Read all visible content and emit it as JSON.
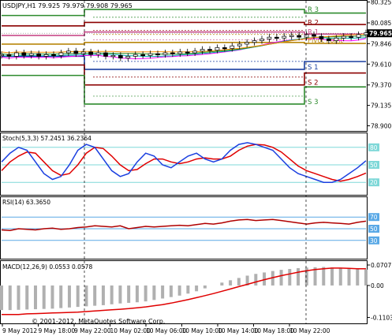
{
  "window": {
    "title": "USDJPY,H1 79.925 79.979 79.908 79.965",
    "copyright": "© 2001-2012, MetaQuotes Software Corp."
  },
  "chart_data": {
    "type": "line",
    "symbol": "USDJPY,H1",
    "x_ticks": [
      "9 May 2012",
      "9 May 18:00",
      "9 May 22:00",
      "10 May 02:00",
      "10 May 06:00",
      "10 May 10:00",
      "10 May 14:00",
      "10 May 18:00",
      "10 May 22:00"
    ],
    "price_panel": {
      "ylim": [
        78.85,
        80.33
      ],
      "ticks": [
        "80.325",
        "80.085",
        "79.846",
        "79.610",
        "79.370",
        "79.135",
        "78.900"
      ],
      "current_price": "79.965",
      "ohlc": {
        "open": 79.925,
        "high": 79.979,
        "low": 79.908,
        "close": 79.965
      },
      "pivot_levels": [
        {
          "name": "R 3",
          "label": "R 3",
          "day1": 80.17,
          "day2": 80.24,
          "color": "#2e8b2e"
        },
        {
          "name": "R 2",
          "label": "R 2",
          "day1": 80.05,
          "day2": 80.09,
          "color": "#8b0000"
        },
        {
          "name": "R 1",
          "label": "R 1",
          "day1": 79.94,
          "day2": 79.98,
          "color": "#c84b8a"
        },
        {
          "name": "Pivot Point",
          "label": "Pivot Point",
          "day1": 79.84,
          "day2": 79.86,
          "color": "#b8860b"
        },
        {
          "name": "S 1",
          "label": "S 1",
          "day1": 79.7,
          "day2": 79.55,
          "color": "#1a3fa0"
        },
        {
          "name": "S 2",
          "label": "S 2",
          "day1": 79.6,
          "day2": 79.37,
          "color": "#8b0000"
        },
        {
          "name": "S 3",
          "label": "S 3",
          "day1": 79.48,
          "day2": 79.15,
          "color": "#2e8b2e"
        }
      ],
      "candles": [
        79.72,
        79.7,
        79.74,
        79.71,
        79.73,
        79.7,
        79.72,
        79.71,
        79.74,
        79.76,
        79.73,
        79.75,
        79.72,
        79.74,
        79.7,
        79.71,
        79.68,
        79.7,
        79.72,
        79.71,
        79.73,
        79.72,
        79.74,
        79.73,
        79.75,
        79.74,
        79.76,
        79.78,
        79.77,
        79.8,
        79.79,
        79.82,
        79.84,
        79.86,
        79.88,
        79.9,
        79.92,
        79.91,
        79.93,
        79.94,
        79.92,
        79.95,
        79.93,
        79.9,
        79.88,
        79.91,
        79.93,
        79.92,
        79.95,
        79.97
      ]
    },
    "stoch_panel": {
      "label": "Stoch(5,3,3) 57.2451 36.2364",
      "ylim": [
        0,
        100
      ],
      "levels": [
        "80",
        "50",
        "20"
      ],
      "main": [
        55,
        70,
        80,
        75,
        55,
        35,
        25,
        30,
        50,
        75,
        85,
        80,
        60,
        40,
        30,
        35,
        55,
        70,
        65,
        50,
        45,
        55,
        65,
        70,
        60,
        55,
        60,
        75,
        85,
        88,
        85,
        80,
        75,
        60,
        45,
        35,
        30,
        25,
        20,
        20,
        25,
        35,
        45,
        57
      ],
      "signal": [
        40,
        55,
        65,
        72,
        70,
        55,
        40,
        32,
        35,
        50,
        70,
        80,
        78,
        65,
        50,
        40,
        42,
        52,
        60,
        60,
        55,
        52,
        55,
        60,
        62,
        60,
        60,
        65,
        75,
        82,
        85,
        84,
        80,
        72,
        60,
        48,
        40,
        35,
        30,
        25,
        22,
        25,
        30,
        36
      ]
    },
    "rsi_panel": {
      "label": "RSI(14) 63.3650",
      "ylim": [
        0,
        100
      ],
      "levels": [
        "70",
        "50",
        "30"
      ],
      "values": [
        48,
        47,
        50,
        49,
        48,
        50,
        51,
        49,
        50,
        52,
        53,
        55,
        54,
        53,
        55,
        50,
        52,
        54,
        53,
        54,
        55,
        56,
        55,
        57,
        59,
        58,
        60,
        63,
        65,
        66,
        64,
        65,
        66,
        64,
        62,
        60,
        58,
        60,
        61,
        60,
        59,
        58,
        61,
        63
      ]
    },
    "macd_panel": {
      "label": "MACD(12,26,9) 0.0553 0.0578",
      "ylim": [
        -0.12,
        0.0707
      ],
      "ticks": [
        "0.0707",
        "0.00",
        "-0.1103"
      ],
      "histogram": [
        -0.085,
        -0.085,
        -0.084,
        -0.083,
        -0.082,
        -0.081,
        -0.08,
        -0.078,
        -0.076,
        -0.074,
        -0.072,
        -0.07,
        -0.068,
        -0.065,
        -0.062,
        -0.06,
        -0.058,
        -0.055,
        -0.05,
        -0.045,
        -0.04,
        -0.035,
        -0.028,
        -0.02,
        -0.01,
        0.0,
        0.01,
        0.018,
        0.026,
        0.034,
        0.04,
        0.045,
        0.05,
        0.054,
        0.057,
        0.06,
        0.062,
        0.063,
        0.064,
        0.062,
        0.06,
        0.058,
        0.056,
        0.055
      ],
      "signal": [
        -0.1,
        -0.1,
        -0.1,
        -0.098,
        -0.097,
        -0.096,
        -0.095,
        -0.094,
        -0.093,
        -0.092,
        -0.09,
        -0.088,
        -0.086,
        -0.084,
        -0.082,
        -0.08,
        -0.077,
        -0.074,
        -0.07,
        -0.066,
        -0.061,
        -0.055,
        -0.049,
        -0.042,
        -0.035,
        -0.028,
        -0.02,
        -0.012,
        -0.004,
        0.004,
        0.012,
        0.02,
        0.027,
        0.034,
        0.04,
        0.046,
        0.051,
        0.055,
        0.058,
        0.06,
        0.06,
        0.059,
        0.058,
        0.058
      ]
    }
  }
}
